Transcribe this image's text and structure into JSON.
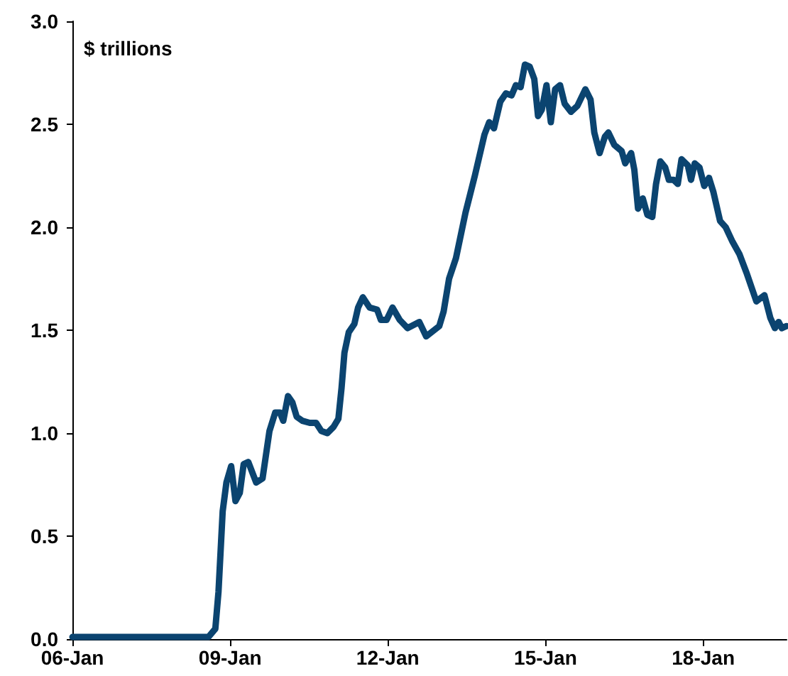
{
  "chart_data": {
    "type": "line",
    "ylabel": "$ trillions",
    "color": "#0b4470",
    "marker": "none",
    "grid": false,
    "x": [
      "2006-01-01",
      "2008-08-03",
      "2008-09-20",
      "2008-10-12",
      "2008-11-10",
      "2008-12-06",
      "2009-01-08",
      "2009-02-07",
      "2009-03-09",
      "2009-04-05",
      "2009-05-07",
      "2009-07-01",
      "2009-08-14",
      "2009-10-01",
      "2009-11-10",
      "2009-12-13",
      "2010-01-05",
      "2010-02-07",
      "2010-03-09",
      "2010-04-08",
      "2010-05-18",
      "2010-07-08",
      "2010-08-21",
      "2010-09-27",
      "2010-11-07",
      "2010-12-20",
      "2011-01-23",
      "2011-02-14",
      "2011-03-06",
      "2011-04-05",
      "2011-05-14",
      "2011-06-09",
      "2011-07-12",
      "2011-08-28",
      "2011-10-19",
      "2011-11-14",
      "2011-12-24",
      "2012-02-03",
      "2012-03-24",
      "2012-05-18",
      "2012-08-07",
      "2012-09-24",
      "2012-12-24",
      "2013-01-23",
      "2013-03-02",
      "2013-04-19",
      "2013-06-24",
      "2013-08-28",
      "2013-11-03",
      "2013-12-06",
      "2014-01-08",
      "2014-02-21",
      "2014-04-01",
      "2014-05-10",
      "2014-06-09",
      "2014-07-12",
      "2014-08-11",
      "2014-09-13",
      "2014-10-15",
      "2014-11-10",
      "2014-12-06",
      "2015-01-08",
      "2015-02-07",
      "2015-03-09",
      "2015-04-12",
      "2015-05-14",
      "2015-06-27",
      "2015-08-11",
      "2015-10-05",
      "2015-11-10",
      "2015-12-06",
      "2016-01-12",
      "2016-02-18",
      "2016-03-13",
      "2016-04-23",
      "2016-06-13",
      "2016-07-08",
      "2016-08-18",
      "2016-09-09",
      "2016-10-05",
      "2016-11-07",
      "2016-12-09",
      "2017-01-12",
      "2017-02-07",
      "2017-03-09",
      "2017-04-12",
      "2017-05-07",
      "2017-06-09",
      "2017-07-08",
      "2017-08-03",
      "2017-09-16",
      "2017-10-08",
      "2017-11-03",
      "2017-12-06",
      "2018-01-08",
      "2018-02-10",
      "2018-03-13",
      "2018-04-28",
      "2018-06-06",
      "2018-07-23",
      "2018-09-09",
      "2018-10-28",
      "2019-01-05",
      "2019-03-02",
      "2019-04-12",
      "2019-05-14",
      "2019-06-09",
      "2019-07-01",
      "2019-08-03"
    ],
    "values": [
      0.01,
      0.01,
      0.05,
      0.23,
      0.62,
      0.76,
      0.84,
      0.67,
      0.71,
      0.85,
      0.86,
      0.76,
      0.78,
      1.01,
      1.1,
      1.1,
      1.06,
      1.18,
      1.15,
      1.08,
      1.06,
      1.05,
      1.05,
      1.01,
      1.0,
      1.03,
      1.07,
      1.22,
      1.39,
      1.49,
      1.53,
      1.61,
      1.66,
      1.61,
      1.6,
      1.55,
      1.55,
      1.61,
      1.55,
      1.51,
      1.54,
      1.47,
      1.52,
      1.59,
      1.75,
      1.85,
      2.07,
      2.25,
      2.45,
      2.51,
      2.48,
      2.61,
      2.65,
      2.64,
      2.69,
      2.68,
      2.79,
      2.78,
      2.72,
      2.54,
      2.57,
      2.69,
      2.51,
      2.67,
      2.69,
      2.6,
      2.56,
      2.59,
      2.67,
      2.62,
      2.46,
      2.36,
      2.44,
      2.46,
      2.4,
      2.37,
      2.31,
      2.36,
      2.28,
      2.09,
      2.14,
      2.06,
      2.05,
      2.21,
      2.32,
      2.29,
      2.23,
      2.23,
      2.21,
      2.33,
      2.3,
      2.23,
      2.31,
      2.29,
      2.2,
      2.24,
      2.17,
      2.03,
      2.0,
      1.93,
      1.87,
      1.78,
      1.64,
      1.67,
      1.56,
      1.51,
      1.54,
      1.51,
      1.52
    ],
    "xlim": [
      "2006-01-01",
      "2019-08-03"
    ],
    "xticks": [
      {
        "value": "2006-01-01",
        "label": "06-Jan"
      },
      {
        "value": "2009-01-01",
        "label": "09-Jan"
      },
      {
        "value": "2012-01-01",
        "label": "12-Jan"
      },
      {
        "value": "2015-01-01",
        "label": "15-Jan"
      },
      {
        "value": "2018-01-01",
        "label": "18-Jan"
      }
    ],
    "ylim": [
      0,
      3
    ],
    "yticks": [
      {
        "value": 0,
        "label": "0.0"
      },
      {
        "value": 0.5,
        "label": "0.5"
      },
      {
        "value": 1,
        "label": "1.0"
      },
      {
        "value": 1.5,
        "label": "1.5"
      },
      {
        "value": 2,
        "label": "2.0"
      },
      {
        "value": 2.5,
        "label": "2.5"
      },
      {
        "value": 3,
        "label": "3.0"
      }
    ]
  }
}
